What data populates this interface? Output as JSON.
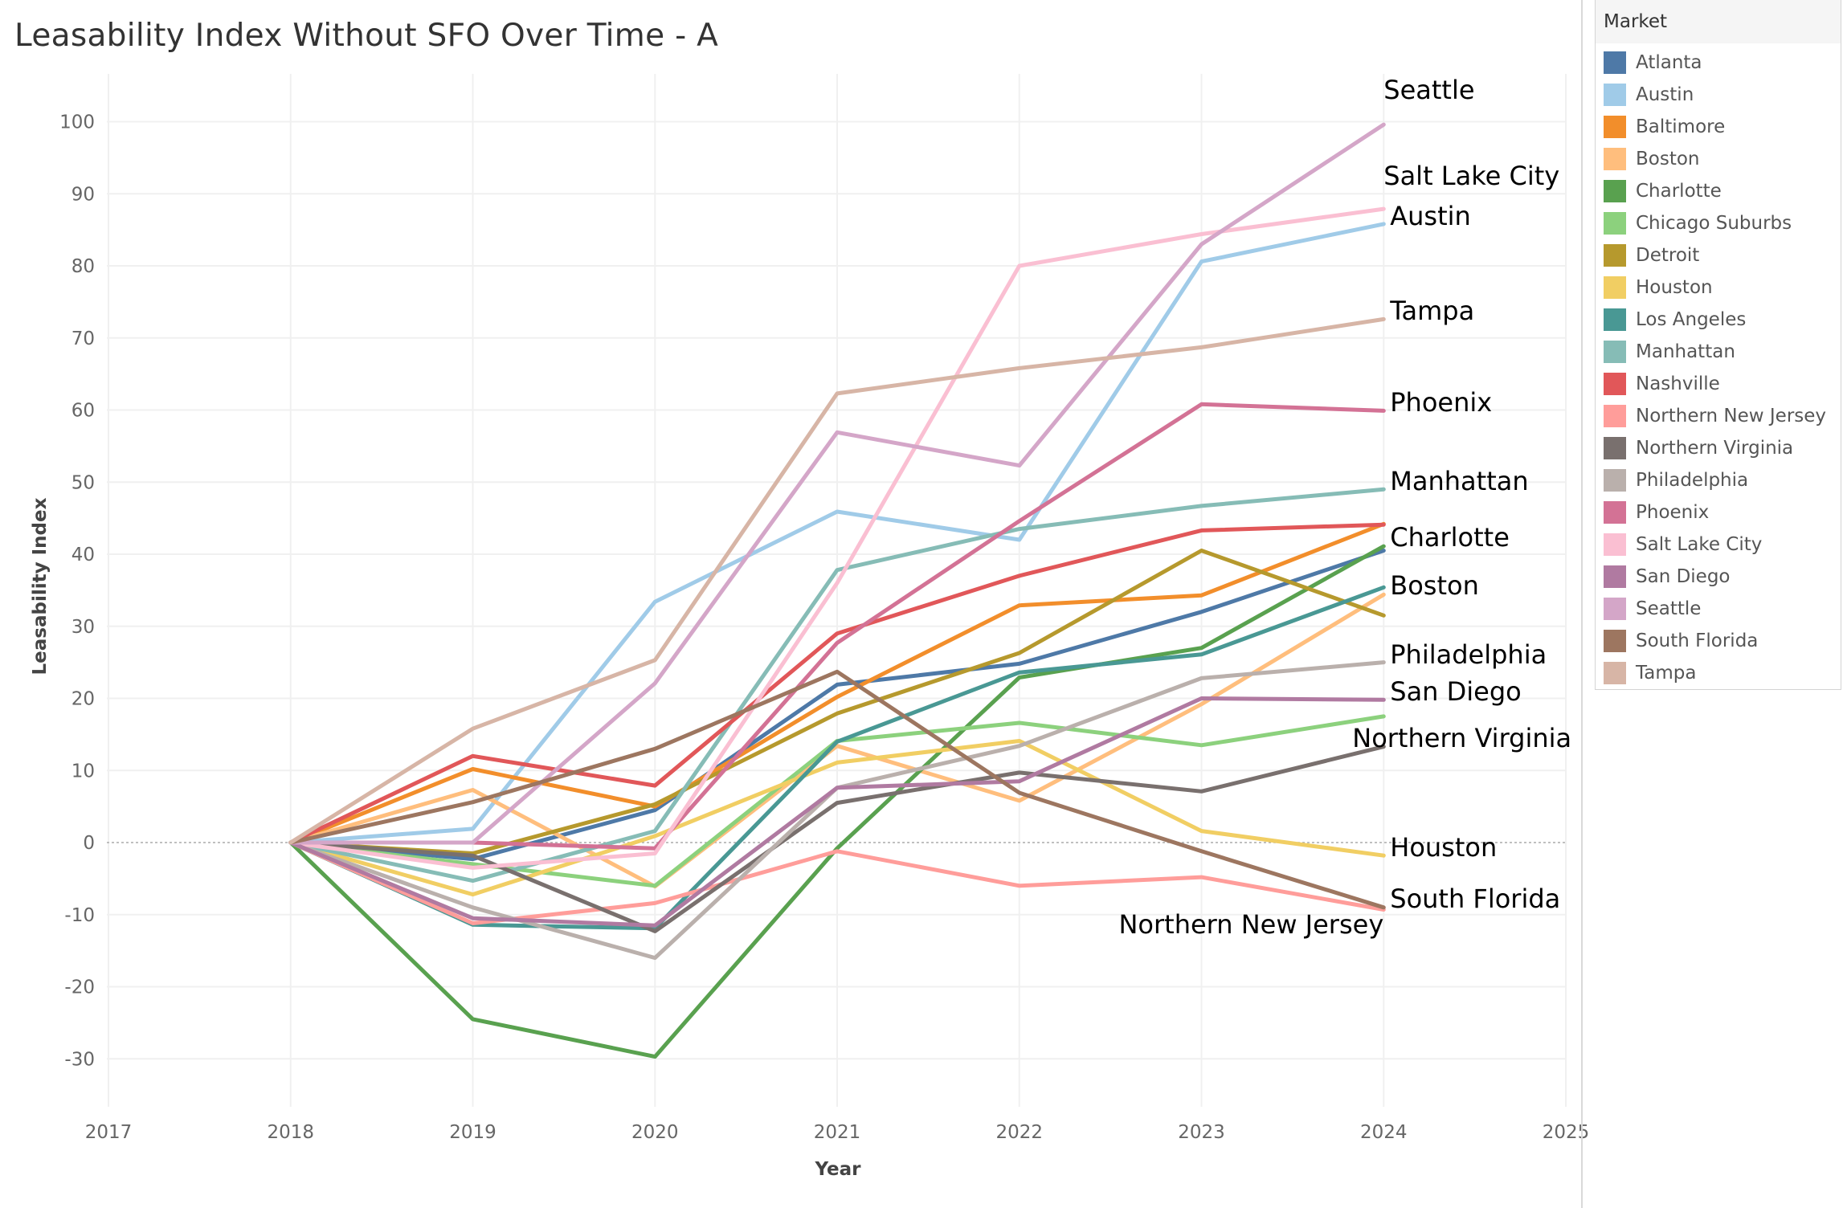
{
  "chart_data": {
    "type": "line",
    "title": "Leasability Index Without SFO Over Time - A",
    "xlabel": "Year",
    "ylabel": "Leasability Index",
    "xlim": [
      2017,
      2025
    ],
    "ylim": [
      -37,
      107
    ],
    "x_ticks": [
      "2017",
      "2018",
      "2019",
      "2020",
      "2021",
      "2022",
      "2023",
      "2024",
      "2025"
    ],
    "y_ticks": [
      "100",
      "90",
      "80",
      "70",
      "60",
      "50",
      "40",
      "30",
      "20",
      "10",
      "0",
      "-10",
      "-20",
      "-30"
    ],
    "grid": true,
    "legend_title": "Market",
    "legend_position": "right",
    "x": [
      2018,
      2019,
      2020,
      2021,
      2022,
      2023,
      2024
    ],
    "series": [
      {
        "name": "Atlanta",
        "color": "#4e79a7",
        "values": [
          0,
          -2.3,
          4.5,
          21.9,
          24.8,
          32,
          40.5
        ]
      },
      {
        "name": "Austin",
        "color": "#a0cbe8",
        "values": [
          0,
          1.9,
          33.4,
          45.9,
          42,
          80.6,
          85.8
        ],
        "end_label": "Austin"
      },
      {
        "name": "Baltimore",
        "color": "#f28e2b",
        "values": [
          0,
          10.2,
          5,
          20.2,
          32.9,
          34.3,
          44.2
        ]
      },
      {
        "name": "Boston",
        "color": "#ffbe7d",
        "values": [
          0,
          7.3,
          -6.1,
          13.4,
          5.8,
          19.2,
          34.4
        ],
        "end_label": "Boston"
      },
      {
        "name": "Charlotte",
        "color": "#59a14f",
        "values": [
          0,
          -24.5,
          -29.7,
          -0.8,
          22.9,
          27,
          41.1
        ],
        "end_label": "Charlotte"
      },
      {
        "name": "Chicago Suburbs",
        "color": "#8cd17d",
        "values": [
          0,
          -3,
          -6,
          14.1,
          16.6,
          13.5,
          17.5
        ]
      },
      {
        "name": "Detroit",
        "color": "#b6992d",
        "values": [
          0,
          -1.5,
          5.3,
          17.9,
          26.3,
          40.5,
          31.5
        ]
      },
      {
        "name": "Houston",
        "color": "#f1ce63",
        "values": [
          0,
          -7.2,
          0.9,
          11.1,
          14.1,
          1.6,
          -1.8
        ],
        "end_label": "Houston"
      },
      {
        "name": "Los Angeles",
        "color": "#499894",
        "values": [
          0,
          -11.4,
          -11.9,
          14,
          23.6,
          26.1,
          35.4
        ]
      },
      {
        "name": "Manhattan",
        "color": "#86bcb6",
        "values": [
          0,
          -5.3,
          1.6,
          37.8,
          43.5,
          46.7,
          49
        ],
        "end_label": "Manhattan"
      },
      {
        "name": "Nashville",
        "color": "#e15759",
        "values": [
          0,
          12,
          7.9,
          29,
          37,
          43.3,
          44.1
        ]
      },
      {
        "name": "Northern New Jersey",
        "color": "#ff9d9a",
        "values": [
          0,
          -11.2,
          -8.4,
          -1.2,
          -6,
          -4.8,
          -9.3
        ],
        "end_label": "Northern New Jersey"
      },
      {
        "name": "Northern Virginia",
        "color": "#79706e",
        "values": [
          0,
          -1.8,
          -12.3,
          5.5,
          9.7,
          7.1,
          13.3
        ],
        "end_label": "Northern Virginia"
      },
      {
        "name": "Philadelphia",
        "color": "#bab0ac",
        "values": [
          0,
          -9,
          -16,
          7.6,
          13.4,
          22.8,
          25
        ],
        "end_label": "Philadelphia"
      },
      {
        "name": "Phoenix",
        "color": "#d37295",
        "values": [
          0,
          0,
          -0.8,
          27.7,
          44.6,
          60.8,
          59.9
        ],
        "end_label": "Phoenix"
      },
      {
        "name": "Salt Lake City",
        "color": "#fabfd2",
        "values": [
          0,
          -3.5,
          -1.5,
          36,
          80,
          84.4,
          87.9
        ],
        "end_label": "Salt Lake City"
      },
      {
        "name": "San Diego",
        "color": "#b07aa1",
        "values": [
          0,
          -10.5,
          -11.5,
          7.6,
          8.5,
          20,
          19.8
        ],
        "end_label": "San Diego"
      },
      {
        "name": "Seattle",
        "color": "#d4a6c8",
        "values": [
          0,
          0,
          22.1,
          56.9,
          52.3,
          83,
          99.6
        ],
        "end_label": "Seattle"
      },
      {
        "name": "South Florida",
        "color": "#9d7660",
        "values": [
          0,
          5.6,
          13,
          23.7,
          6.9,
          -1.2,
          -9
        ],
        "end_label": "South Florida"
      },
      {
        "name": "Tampa",
        "color": "#d7b5a6",
        "values": [
          0,
          15.8,
          25.3,
          62.3,
          65.8,
          68.7,
          72.6
        ],
        "end_label": "Tampa"
      }
    ]
  }
}
